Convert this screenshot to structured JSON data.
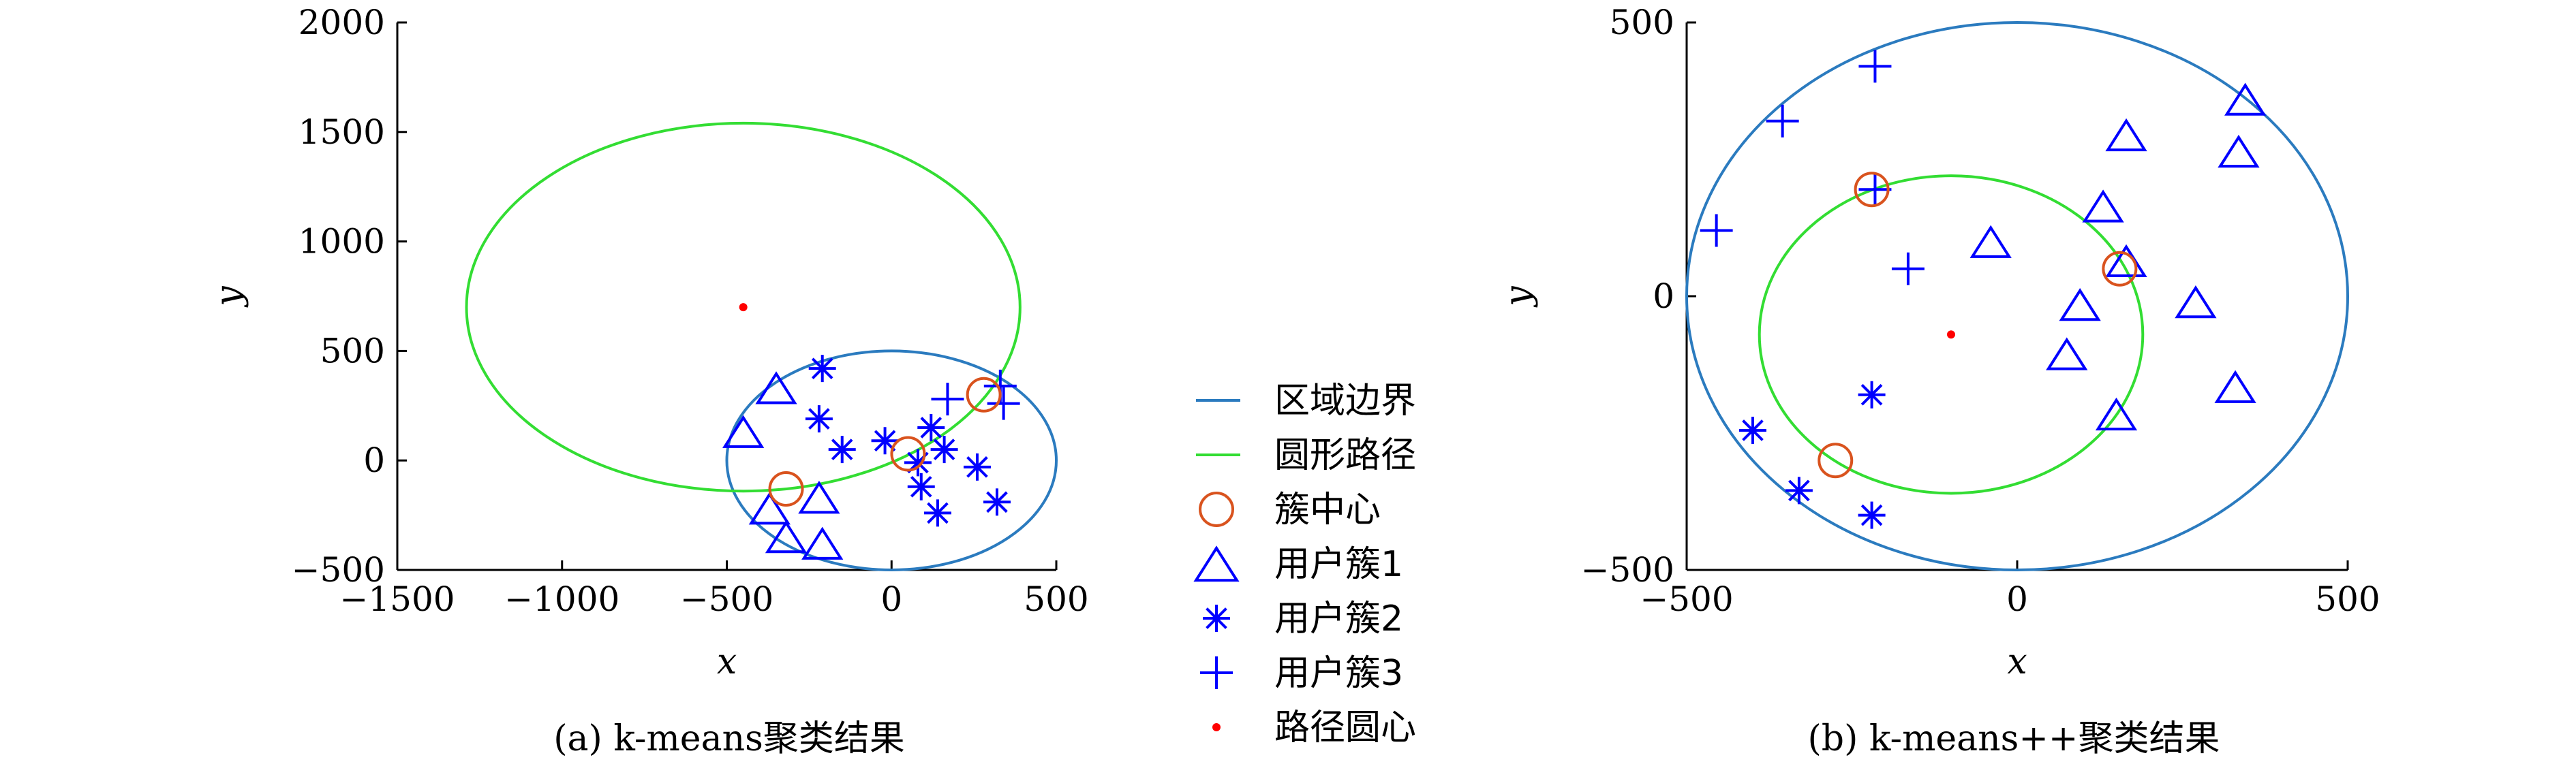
{
  "colors": {
    "region_boundary": "#2b7bbf",
    "circular_path": "#33dd33",
    "cluster_center": "#d9531e",
    "users": "#0000ff",
    "path_center": "#ff0000"
  },
  "legend": {
    "items": [
      {
        "key": "region_boundary",
        "label": "区域边界",
        "marker": "line"
      },
      {
        "key": "circular_path",
        "label": "圆形路径",
        "marker": "line"
      },
      {
        "key": "cluster_center",
        "label": "簇中心",
        "marker": "circle"
      },
      {
        "key": "cluster1",
        "label": "用户簇1",
        "marker": "triangle"
      },
      {
        "key": "cluster2",
        "label": "用户簇2",
        "marker": "asterisk"
      },
      {
        "key": "cluster3",
        "label": "用户簇3",
        "marker": "plus"
      },
      {
        "key": "path_center",
        "label": "路径圆心",
        "marker": "dot"
      }
    ]
  },
  "chart_data": [
    {
      "type": "scatter",
      "caption": "(a) k-means聚类结果",
      "xlabel": "x",
      "ylabel": "y",
      "xlim": [
        -1500,
        500
      ],
      "ylim": [
        -500,
        2000
      ],
      "xticks": [
        -1500,
        -1000,
        -500,
        0,
        500
      ],
      "yticks": [
        -500,
        0,
        500,
        1000,
        1500,
        2000
      ],
      "xtick_labels": [
        "−1500",
        "−1000",
        "−500",
        "0",
        "500"
      ],
      "ytick_labels": [
        "−500",
        "0",
        "500",
        "1000",
        "1500",
        "2000"
      ],
      "equal_aspect": false,
      "region_boundary": {
        "cx": 0,
        "cy": 0,
        "r": 500
      },
      "circular_path": {
        "cx": -450,
        "cy": 700,
        "r": 840
      },
      "path_center": [
        -450,
        700
      ],
      "cluster_centers": [
        [
          -320,
          -130
        ],
        [
          50,
          30
        ],
        [
          280,
          300
        ]
      ],
      "series": [
        {
          "name": "用户簇1",
          "marker": "triangle",
          "points": [
            [
              -350,
              320
            ],
            [
              -450,
              120
            ],
            [
              -370,
              -230
            ],
            [
              -320,
              -360
            ],
            [
              -220,
              -180
            ],
            [
              -210,
              -390
            ]
          ]
        },
        {
          "name": "用户簇2",
          "marker": "asterisk",
          "points": [
            [
              -210,
              420
            ],
            [
              -220,
              190
            ],
            [
              -150,
              50
            ],
            [
              -20,
              90
            ],
            [
              80,
              -10
            ],
            [
              90,
              -120
            ],
            [
              120,
              150
            ],
            [
              160,
              50
            ],
            [
              260,
              -30
            ],
            [
              320,
              -190
            ],
            [
              140,
              -240
            ]
          ]
        },
        {
          "name": "用户簇3",
          "marker": "plus",
          "points": [
            [
              170,
              280
            ],
            [
              330,
              340
            ],
            [
              340,
              260
            ]
          ]
        }
      ]
    },
    {
      "type": "scatter",
      "caption": "(b) k-means++聚类结果",
      "xlabel": "x",
      "ylabel": "y",
      "xlim": [
        -500,
        500
      ],
      "ylim": [
        -500,
        500
      ],
      "xticks": [
        -500,
        0,
        500
      ],
      "yticks": [
        -500,
        0,
        500
      ],
      "xtick_labels": [
        "−500",
        "0",
        "500"
      ],
      "ytick_labels": [
        "−500",
        "0",
        "500"
      ],
      "equal_aspect": false,
      "region_boundary": {
        "cx": 0,
        "cy": 0,
        "r": 500
      },
      "circular_path": {
        "cx": -100,
        "cy": -70,
        "r": 290
      },
      "path_center": [
        -100,
        -70
      ],
      "cluster_centers": [
        [
          -220,
          195
        ],
        [
          155,
          50
        ],
        [
          -275,
          -300
        ]
      ],
      "series": [
        {
          "name": "用户簇1",
          "marker": "triangle",
          "points": [
            [
              -40,
              95
            ],
            [
              130,
              160
            ],
            [
              165,
              290
            ],
            [
              345,
              355
            ],
            [
              335,
              260
            ],
            [
              165,
              60
            ],
            [
              95,
              -20
            ],
            [
              75,
              -110
            ],
            [
              270,
              -15
            ],
            [
              330,
              -170
            ],
            [
              150,
              -220
            ]
          ]
        },
        {
          "name": "用户簇2",
          "marker": "asterisk",
          "points": [
            [
              -220,
              -180
            ],
            [
              -400,
              -245
            ],
            [
              -330,
              -355
            ],
            [
              -220,
              -400
            ]
          ]
        },
        {
          "name": "用户簇3",
          "marker": "plus",
          "points": [
            [
              -215,
              420
            ],
            [
              -355,
              320
            ],
            [
              -455,
              120
            ],
            [
              -215,
              195
            ],
            [
              -165,
              50
            ]
          ]
        }
      ]
    }
  ]
}
